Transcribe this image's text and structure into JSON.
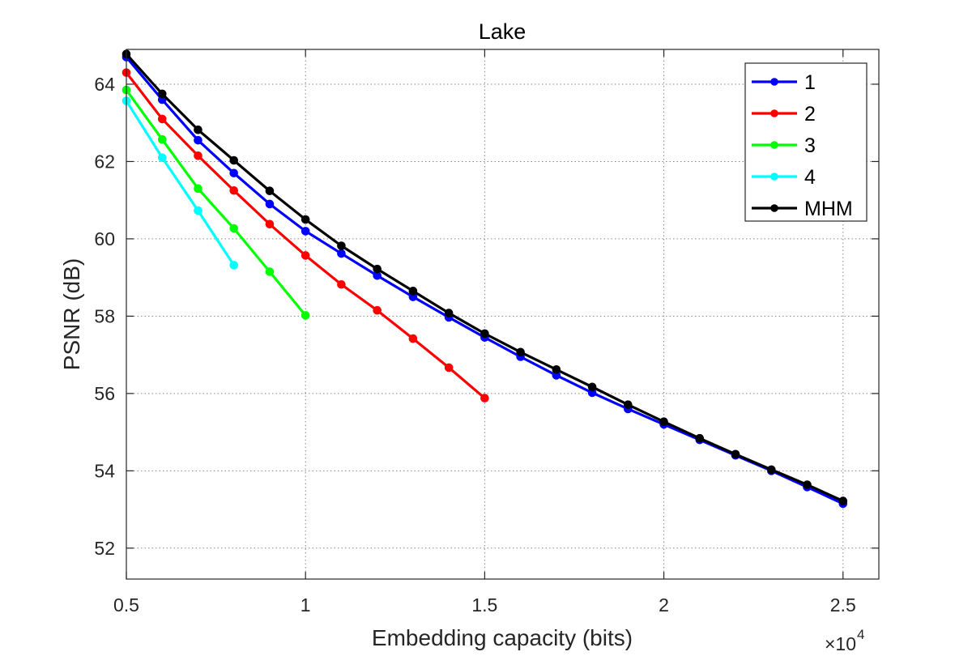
{
  "chart_data": {
    "type": "line",
    "title": "Lake",
    "xlabel": "Embedding capacity (bits)",
    "ylabel": "PSNR (dB)",
    "x_multiplier_label": "×10",
    "x_multiplier_exponent": "4",
    "xlim": [
      0.5,
      2.6
    ],
    "ylim": [
      51.2,
      64.9
    ],
    "grid": true,
    "legend_position": "top-right",
    "xticks": [
      0.5,
      1,
      1.5,
      2,
      2.5
    ],
    "xtick_labels": [
      "0.5",
      "1",
      "1.5",
      "2",
      "2.5"
    ],
    "yticks": [
      52,
      54,
      56,
      58,
      60,
      62,
      64
    ],
    "ytick_labels": [
      "52",
      "54",
      "56",
      "58",
      "60",
      "62",
      "64"
    ],
    "series": [
      {
        "name": "1",
        "color": "#0000ff",
        "x": [
          0.5,
          0.6,
          0.7,
          0.8,
          0.9,
          1.0,
          1.1,
          1.2,
          1.3,
          1.4,
          1.5,
          1.6,
          1.7,
          1.8,
          1.9,
          2.0,
          2.1,
          2.2,
          2.3,
          2.4,
          2.5
        ],
        "y": [
          64.7,
          63.6,
          62.55,
          61.7,
          60.9,
          60.2,
          59.62,
          59.05,
          58.5,
          57.97,
          57.45,
          56.95,
          56.47,
          56.02,
          55.6,
          55.2,
          54.8,
          54.4,
          54.0,
          53.58,
          53.15
        ]
      },
      {
        "name": "2",
        "color": "#ff0000",
        "x": [
          0.5,
          0.6,
          0.7,
          0.8,
          0.9,
          1.0,
          1.1,
          1.2,
          1.3,
          1.4,
          1.5
        ],
        "y": [
          64.3,
          63.1,
          62.15,
          61.25,
          60.38,
          59.57,
          58.82,
          58.15,
          57.42,
          56.67,
          55.88
        ]
      },
      {
        "name": "3",
        "color": "#00ff00",
        "x": [
          0.5,
          0.6,
          0.7,
          0.8,
          0.9,
          1.0
        ],
        "y": [
          63.85,
          62.57,
          61.3,
          60.27,
          59.15,
          58.02
        ]
      },
      {
        "name": "4",
        "color": "#00ffff",
        "x": [
          0.5,
          0.6,
          0.7,
          0.8
        ],
        "y": [
          63.57,
          62.1,
          60.73,
          59.32
        ]
      },
      {
        "name": "MHM",
        "color": "#000000",
        "x": [
          0.5,
          0.6,
          0.7,
          0.8,
          0.9,
          1.0,
          1.1,
          1.2,
          1.3,
          1.4,
          1.5,
          1.6,
          1.7,
          1.8,
          1.9,
          2.0,
          2.1,
          2.2,
          2.3,
          2.4,
          2.5
        ],
        "y": [
          64.78,
          63.75,
          62.82,
          62.03,
          61.24,
          60.5,
          59.82,
          59.22,
          58.65,
          58.08,
          57.55,
          57.07,
          56.62,
          56.17,
          55.71,
          55.27,
          54.84,
          54.43,
          54.03,
          53.64,
          53.22
        ]
      }
    ]
  }
}
